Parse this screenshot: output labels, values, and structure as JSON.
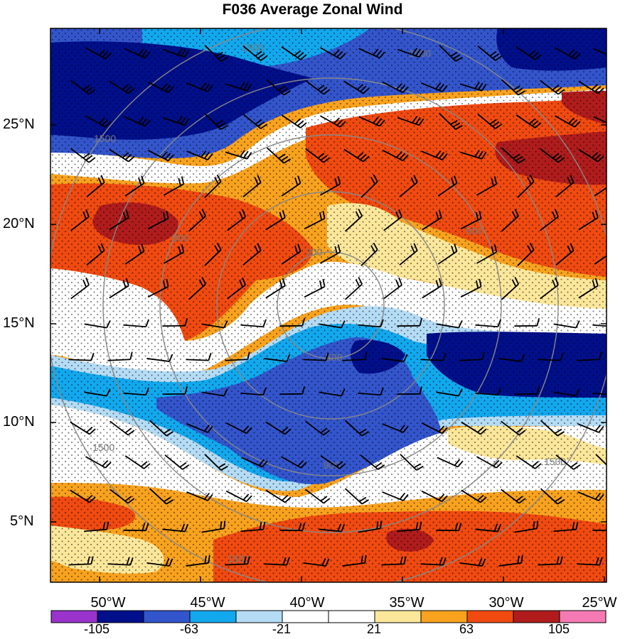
{
  "title": "F036 Average Zonal Wind",
  "map": {
    "lat_labels": [
      "25°N",
      "20°N",
      "15°N",
      "10°N",
      "5°N"
    ],
    "lon_labels": [
      "50°W",
      "45°W",
      "40°W",
      "35°W",
      "30°W",
      "25°W"
    ],
    "contour_labels": [
      "1500",
      "1500",
      "1500",
      "900",
      "900",
      "300",
      "300",
      "900",
      "1500",
      "1500",
      "1500"
    ]
  },
  "colorbar": {
    "colors": [
      "#9933cc",
      "#000f8a",
      "#3355cc",
      "#12a8ee",
      "#b4dcf5",
      "#ffffff",
      "#ffffff",
      "#fbe79a",
      "#f8a21e",
      "#f04a10",
      "#b01c1c",
      "#f57ab4"
    ],
    "labels": [
      "-105",
      "-63",
      "-21",
      "21",
      "63",
      "105"
    ]
  },
  "colors": {
    "deep_blue": "#000f8a",
    "blue": "#3355cc",
    "sky": "#12a8ee",
    "light_blue": "#b4dcf5",
    "white": "#ffffff",
    "yellow": "#fbe79a",
    "orange": "#f8a21e",
    "red_orange": "#f04a10",
    "dark_red": "#b01c1c"
  }
}
